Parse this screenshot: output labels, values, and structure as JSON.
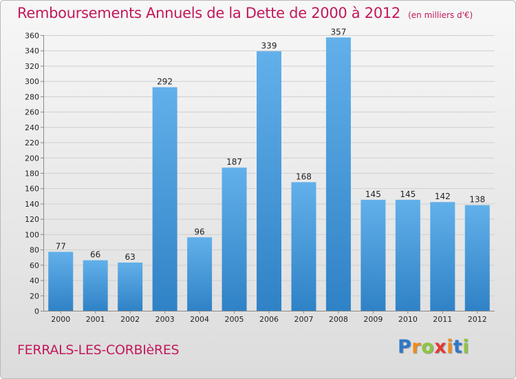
{
  "title": "Remboursements Annuels de la Dette de 2000 à 2012",
  "unit_note": "(en milliers d'€)",
  "commune": "FERRALS-LES-CORBIèRES",
  "brand": {
    "letters": [
      "P",
      "r",
      "o",
      "x",
      "i",
      "t",
      "i"
    ],
    "colors": [
      "#2e78c9",
      "#f08a1c",
      "#8cc63f",
      "#e53935",
      "#f08a1c",
      "#2e78c9",
      "#8cc63f"
    ]
  },
  "colors": {
    "title": "#c2185b",
    "bar_top": "#62b0ea",
    "bar_bottom": "#2f82c6",
    "grid": "#cfcfcf"
  },
  "chart_data": {
    "type": "bar",
    "title": "Remboursements Annuels de la Dette de 2000 à 2012",
    "subtitle": "(en milliers d'€)",
    "categories": [
      "2000",
      "2001",
      "2002",
      "2003",
      "2004",
      "2005",
      "2006",
      "2007",
      "2008",
      "2009",
      "2010",
      "2011",
      "2012"
    ],
    "values": [
      77,
      66,
      63,
      292,
      96,
      187,
      339,
      168,
      357,
      145,
      145,
      142,
      138
    ],
    "ylim": [
      0,
      360
    ],
    "yticks": [
      0,
      20,
      40,
      60,
      80,
      100,
      120,
      140,
      160,
      180,
      200,
      220,
      240,
      260,
      280,
      300,
      320,
      340,
      360
    ],
    "grid": true,
    "xlabel": "",
    "ylabel": ""
  }
}
